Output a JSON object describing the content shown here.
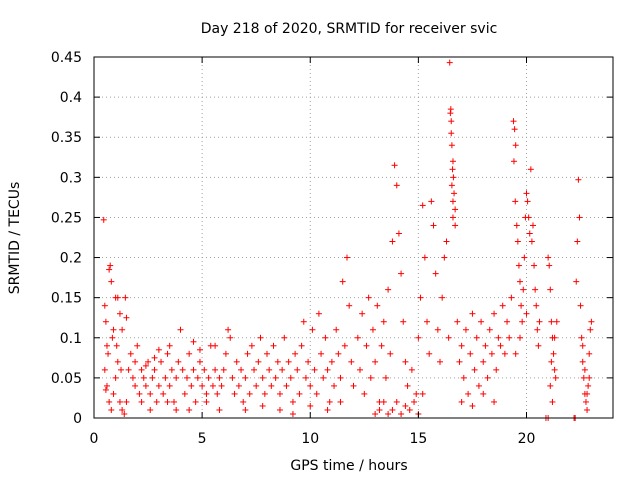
{
  "chart_data": {
    "type": "scatter",
    "title": "Day 218 of 2020, SRMTID for receiver svic",
    "xlabel": "GPS time / hours",
    "ylabel": "SRMTID / TECUs",
    "xlim": [
      0,
      24
    ],
    "ylim": [
      0,
      0.45
    ],
    "grid": true,
    "marker": "+",
    "series_color": "#ff0000",
    "x_ticks": [
      0,
      5,
      10,
      15,
      20
    ],
    "x_tick_labels": [
      "0",
      "5",
      "10",
      "15",
      "20"
    ],
    "y_ticks": [
      0,
      0.05,
      0.1,
      0.15,
      0.2,
      0.25,
      0.3,
      0.35,
      0.4,
      0.45
    ],
    "y_tick_labels": [
      "0",
      "0.05",
      "0.1",
      "0.15",
      "0.2",
      "0.25",
      "0.3",
      "0.35",
      "0.4",
      "0.45"
    ],
    "points": [
      [
        0.45,
        0.247
      ],
      [
        0.5,
        0.14
      ],
      [
        0.55,
        0.12
      ],
      [
        0.6,
        0.09
      ],
      [
        0.7,
        0.185
      ],
      [
        0.75,
        0.19
      ],
      [
        0.8,
        0.17
      ],
      [
        0.9,
        0.11
      ],
      [
        1.0,
        0.15
      ],
      [
        1.1,
        0.15
      ],
      [
        1.2,
        0.13
      ],
      [
        1.3,
        0.11
      ],
      [
        1.45,
        0.15
      ],
      [
        1.5,
        0.125
      ],
      [
        0.5,
        0.06
      ],
      [
        0.6,
        0.04
      ],
      [
        0.7,
        0.02
      ],
      [
        0.8,
        0.01
      ],
      [
        0.9,
        0.03
      ],
      [
        1.0,
        0.05
      ],
      [
        1.1,
        0.07
      ],
      [
        1.2,
        0.02
      ],
      [
        1.3,
        0.01
      ],
      [
        1.4,
        0.005
      ],
      [
        1.5,
        0.02
      ],
      [
        0.65,
        0.08
      ],
      [
        0.85,
        0.1
      ],
      [
        1.05,
        0.09
      ],
      [
        1.25,
        0.06
      ],
      [
        0.55,
        0.035
      ],
      [
        1.6,
        0.06
      ],
      [
        1.7,
        0.08
      ],
      [
        1.8,
        0.05
      ],
      [
        1.9,
        0.04
      ],
      [
        2.0,
        0.09
      ],
      [
        2.1,
        0.03
      ],
      [
        2.2,
        0.06
      ],
      [
        2.3,
        0.05
      ],
      [
        2.4,
        0.04
      ],
      [
        2.5,
        0.07
      ],
      [
        2.6,
        0.03
      ],
      [
        2.7,
        0.05
      ],
      [
        2.8,
        0.06
      ],
      [
        2.9,
        0.02
      ],
      [
        3.0,
        0.04
      ],
      [
        3.1,
        0.07
      ],
      [
        3.2,
        0.03
      ],
      [
        3.3,
        0.05
      ],
      [
        3.4,
        0.08
      ],
      [
        3.5,
        0.04
      ],
      [
        3.6,
        0.06
      ],
      [
        3.7,
        0.02
      ],
      [
        3.8,
        0.05
      ],
      [
        3.9,
        0.07
      ],
      [
        4.0,
        0.11
      ],
      [
        4.1,
        0.06
      ],
      [
        4.2,
        0.03
      ],
      [
        4.3,
        0.05
      ],
      [
        4.4,
        0.08
      ],
      [
        4.5,
        0.04
      ],
      [
        4.6,
        0.06
      ],
      [
        4.7,
        0.02
      ],
      [
        4.8,
        0.05
      ],
      [
        4.9,
        0.07
      ],
      [
        5.0,
        0.04
      ],
      [
        5.1,
        0.06
      ],
      [
        5.2,
        0.03
      ],
      [
        5.3,
        0.05
      ],
      [
        5.4,
        0.09
      ],
      [
        5.5,
        0.04
      ],
      [
        5.6,
        0.06
      ],
      [
        5.7,
        0.03
      ],
      [
        5.8,
        0.05
      ],
      [
        5.9,
        0.04
      ],
      [
        6.0,
        0.06
      ],
      [
        2.2,
        0.02
      ],
      [
        2.6,
        0.01
      ],
      [
        3.4,
        0.02
      ],
      [
        3.8,
        0.01
      ],
      [
        4.4,
        0.01
      ],
      [
        5.2,
        0.02
      ],
      [
        5.8,
        0.01
      ],
      [
        3.0,
        0.085
      ],
      [
        3.5,
        0.09
      ],
      [
        4.6,
        0.095
      ],
      [
        5.6,
        0.09
      ],
      [
        2.8,
        0.075
      ],
      [
        4.9,
        0.085
      ],
      [
        1.9,
        0.07
      ],
      [
        2.4,
        0.065
      ],
      [
        6.1,
        0.08
      ],
      [
        6.2,
        0.11
      ],
      [
        6.3,
        0.1
      ],
      [
        6.4,
        0.05
      ],
      [
        6.5,
        0.03
      ],
      [
        6.6,
        0.07
      ],
      [
        6.7,
        0.04
      ],
      [
        6.8,
        0.06
      ],
      [
        6.9,
        0.02
      ],
      [
        7.0,
        0.05
      ],
      [
        7.1,
        0.08
      ],
      [
        7.2,
        0.03
      ],
      [
        7.3,
        0.09
      ],
      [
        7.4,
        0.06
      ],
      [
        7.5,
        0.04
      ],
      [
        7.6,
        0.07
      ],
      [
        7.7,
        0.1
      ],
      [
        7.8,
        0.05
      ],
      [
        7.9,
        0.03
      ],
      [
        8.0,
        0.08
      ],
      [
        8.1,
        0.06
      ],
      [
        8.2,
        0.04
      ],
      [
        8.3,
        0.09
      ],
      [
        8.4,
        0.05
      ],
      [
        8.5,
        0.07
      ],
      [
        8.6,
        0.03
      ],
      [
        8.7,
        0.06
      ],
      [
        8.8,
        0.1
      ],
      [
        8.9,
        0.04
      ],
      [
        9.0,
        0.07
      ],
      [
        9.1,
        0.05
      ],
      [
        9.2,
        0.02
      ],
      [
        9.3,
        0.08
      ],
      [
        9.4,
        0.06
      ],
      [
        9.5,
        0.03
      ],
      [
        9.6,
        0.09
      ],
      [
        9.7,
        0.12
      ],
      [
        9.8,
        0.05
      ],
      [
        9.9,
        0.07
      ],
      [
        10.0,
        0.04
      ],
      [
        10.1,
        0.11
      ],
      [
        10.2,
        0.06
      ],
      [
        10.3,
        0.03
      ],
      [
        10.4,
        0.13
      ],
      [
        10.5,
        0.08
      ],
      [
        10.6,
        0.05
      ],
      [
        10.7,
        0.1
      ],
      [
        10.8,
        0.06
      ],
      [
        10.9,
        0.02
      ],
      [
        11.0,
        0.07
      ],
      [
        11.1,
        0.04
      ],
      [
        11.2,
        0.11
      ],
      [
        11.3,
        0.08
      ],
      [
        11.4,
        0.05
      ],
      [
        11.5,
        0.17
      ],
      [
        11.6,
        0.09
      ],
      [
        11.7,
        0.2
      ],
      [
        11.8,
        0.14
      ],
      [
        11.9,
        0.07
      ],
      [
        12.0,
        0.04
      ],
      [
        7.0,
        0.01
      ],
      [
        7.8,
        0.015
      ],
      [
        8.6,
        0.01
      ],
      [
        9.2,
        0.005
      ],
      [
        10.0,
        0.015
      ],
      [
        10.8,
        0.01
      ],
      [
        11.4,
        0.02
      ],
      [
        12.2,
        0.1
      ],
      [
        12.3,
        0.06
      ],
      [
        12.4,
        0.13
      ],
      [
        12.5,
        0.03
      ],
      [
        12.6,
        0.09
      ],
      [
        12.7,
        0.15
      ],
      [
        12.8,
        0.05
      ],
      [
        12.9,
        0.11
      ],
      [
        13.0,
        0.07
      ],
      [
        13.1,
        0.14
      ],
      [
        13.2,
        0.02
      ],
      [
        13.3,
        0.09
      ],
      [
        13.4,
        0.12
      ],
      [
        13.5,
        0.05
      ],
      [
        13.6,
        0.16
      ],
      [
        13.7,
        0.08
      ],
      [
        13.8,
        0.22
      ],
      [
        13.9,
        0.315
      ],
      [
        14.0,
        0.29
      ],
      [
        14.1,
        0.23
      ],
      [
        14.2,
        0.18
      ],
      [
        14.3,
        0.12
      ],
      [
        14.4,
        0.07
      ],
      [
        13.0,
        0.005
      ],
      [
        13.2,
        0.01
      ],
      [
        13.4,
        0.02
      ],
      [
        13.6,
        0.005
      ],
      [
        13.8,
        0.01
      ],
      [
        14.0,
        0.02
      ],
      [
        14.2,
        0.005
      ],
      [
        14.4,
        0.015
      ],
      [
        14.6,
        0.01
      ],
      [
        14.8,
        0.02
      ],
      [
        15.0,
        0.005
      ],
      [
        15.2,
        0.03
      ],
      [
        14.5,
        0.04
      ],
      [
        14.7,
        0.06
      ],
      [
        14.9,
        0.03
      ],
      [
        15.0,
        0.1
      ],
      [
        15.1,
        0.15
      ],
      [
        15.2,
        0.265
      ],
      [
        15.3,
        0.2
      ],
      [
        15.4,
        0.12
      ],
      [
        15.5,
        0.08
      ],
      [
        15.6,
        0.27
      ],
      [
        15.7,
        0.24
      ],
      [
        15.8,
        0.18
      ],
      [
        15.9,
        0.11
      ],
      [
        16.0,
        0.07
      ],
      [
        16.1,
        0.15
      ],
      [
        16.2,
        0.2
      ],
      [
        16.3,
        0.22
      ],
      [
        16.4,
        0.1
      ],
      [
        16.45,
        0.443
      ],
      [
        16.5,
        0.385
      ],
      [
        16.52,
        0.37
      ],
      [
        16.55,
        0.34
      ],
      [
        16.6,
        0.32
      ],
      [
        16.62,
        0.3
      ],
      [
        16.65,
        0.28
      ],
      [
        16.7,
        0.26
      ],
      [
        16.55,
        0.29
      ],
      [
        16.6,
        0.25
      ],
      [
        16.58,
        0.31
      ],
      [
        16.52,
        0.355
      ],
      [
        16.48,
        0.38
      ],
      [
        16.6,
        0.27
      ],
      [
        16.7,
        0.24
      ],
      [
        16.8,
        0.12
      ],
      [
        16.9,
        0.07
      ],
      [
        17.0,
        0.09
      ],
      [
        17.1,
        0.05
      ],
      [
        17.2,
        0.11
      ],
      [
        17.3,
        0.03
      ],
      [
        17.4,
        0.08
      ],
      [
        17.5,
        0.13
      ],
      [
        17.6,
        0.06
      ],
      [
        17.7,
        0.1
      ],
      [
        17.8,
        0.04
      ],
      [
        17.9,
        0.12
      ],
      [
        18.0,
        0.07
      ],
      [
        18.1,
        0.09
      ],
      [
        18.2,
        0.05
      ],
      [
        18.3,
        0.11
      ],
      [
        18.4,
        0.08
      ],
      [
        18.5,
        0.13
      ],
      [
        18.6,
        0.06
      ],
      [
        18.7,
        0.1
      ],
      [
        18.8,
        0.09
      ],
      [
        18.9,
        0.14
      ],
      [
        19.0,
        0.08
      ],
      [
        19.1,
        0.12
      ],
      [
        19.2,
        0.1
      ],
      [
        19.3,
        0.15
      ],
      [
        17.0,
        0.02
      ],
      [
        17.5,
        0.015
      ],
      [
        18.0,
        0.03
      ],
      [
        18.5,
        0.02
      ],
      [
        19.4,
        0.37
      ],
      [
        19.45,
        0.36
      ],
      [
        19.5,
        0.34
      ],
      [
        19.42,
        0.32
      ],
      [
        19.48,
        0.27
      ],
      [
        19.55,
        0.24
      ],
      [
        19.6,
        0.22
      ],
      [
        19.65,
        0.19
      ],
      [
        19.7,
        0.17
      ],
      [
        19.75,
        0.14
      ],
      [
        19.8,
        0.12
      ],
      [
        19.85,
        0.16
      ],
      [
        19.9,
        0.2
      ],
      [
        19.95,
        0.25
      ],
      [
        20.0,
        0.28
      ],
      [
        20.05,
        0.27
      ],
      [
        20.1,
        0.25
      ],
      [
        20.15,
        0.23
      ],
      [
        20.2,
        0.31
      ],
      [
        20.25,
        0.22
      ],
      [
        20.3,
        0.24
      ],
      [
        20.35,
        0.19
      ],
      [
        20.4,
        0.16
      ],
      [
        20.45,
        0.14
      ],
      [
        20.5,
        0.11
      ],
      [
        20.55,
        0.09
      ],
      [
        20.6,
        0.12
      ],
      [
        19.5,
        0.08
      ],
      [
        19.7,
        0.1
      ],
      [
        20.0,
        0.13
      ],
      [
        21.0,
        0.2
      ],
      [
        21.05,
        0.19
      ],
      [
        21.1,
        0.16
      ],
      [
        21.15,
        0.12
      ],
      [
        21.2,
        0.1
      ],
      [
        21.25,
        0.08
      ],
      [
        21.3,
        0.06
      ],
      [
        21.35,
        0.05
      ],
      [
        21.4,
        0.12
      ],
      [
        21.1,
        0.04
      ],
      [
        21.2,
        0.02
      ],
      [
        21.0,
        0.0
      ],
      [
        20.9,
        0.0
      ],
      [
        21.3,
        0.1
      ],
      [
        21.15,
        0.07
      ],
      [
        22.4,
        0.297
      ],
      [
        22.45,
        0.25
      ],
      [
        22.35,
        0.22
      ],
      [
        22.3,
        0.17
      ],
      [
        22.5,
        0.14
      ],
      [
        22.55,
        0.1
      ],
      [
        22.6,
        0.07
      ],
      [
        22.65,
        0.05
      ],
      [
        22.7,
        0.03
      ],
      [
        22.75,
        0.02
      ],
      [
        22.8,
        0.01
      ],
      [
        22.85,
        0.04
      ],
      [
        22.9,
        0.08
      ],
      [
        22.95,
        0.11
      ],
      [
        23.0,
        0.12
      ],
      [
        22.2,
        0.0
      ],
      [
        22.25,
        0.0
      ],
      [
        22.7,
        0.06
      ],
      [
        22.8,
        0.03
      ],
      [
        22.6,
        0.09
      ],
      [
        22.9,
        0.05
      ]
    ]
  }
}
